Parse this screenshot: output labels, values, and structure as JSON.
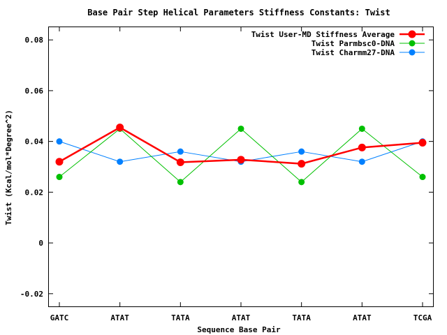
{
  "chart_data": {
    "type": "line",
    "title": "Base Pair Step Helical Parameters Stiffness Constants: Twist",
    "xlabel": "Sequence Base Pair",
    "ylabel": "Twist (Kcal/mol*Degree^2)",
    "categories": [
      "GATC",
      "ATAT",
      "TATA",
      "ATAT",
      "TATA",
      "ATAT",
      "TCGA"
    ],
    "ylim": [
      -0.025,
      0.085
    ],
    "yticks": [
      -0.02,
      0,
      0.02,
      0.04,
      0.06,
      0.08
    ],
    "ytick_labels": [
      "-0.02",
      "0",
      "0.02",
      "0.04",
      "0.06",
      "0.08"
    ],
    "grid": false,
    "legend_position": "top-right",
    "series": [
      {
        "name": "Twist User-MD Stiffness Average",
        "color": "#ff0000",
        "values": [
          0.032,
          0.0455,
          0.0318,
          0.0328,
          0.0312,
          0.0376,
          0.0395
        ]
      },
      {
        "name": "Twist Parmbsc0-DNA",
        "color": "#00c000",
        "values": [
          0.026,
          0.045,
          0.024,
          0.045,
          0.024,
          0.045,
          0.026
        ]
      },
      {
        "name": "Twist Charmm27-DNA",
        "color": "#0080ff",
        "values": [
          0.04,
          0.032,
          0.036,
          0.032,
          0.036,
          0.032,
          0.04
        ]
      }
    ]
  }
}
